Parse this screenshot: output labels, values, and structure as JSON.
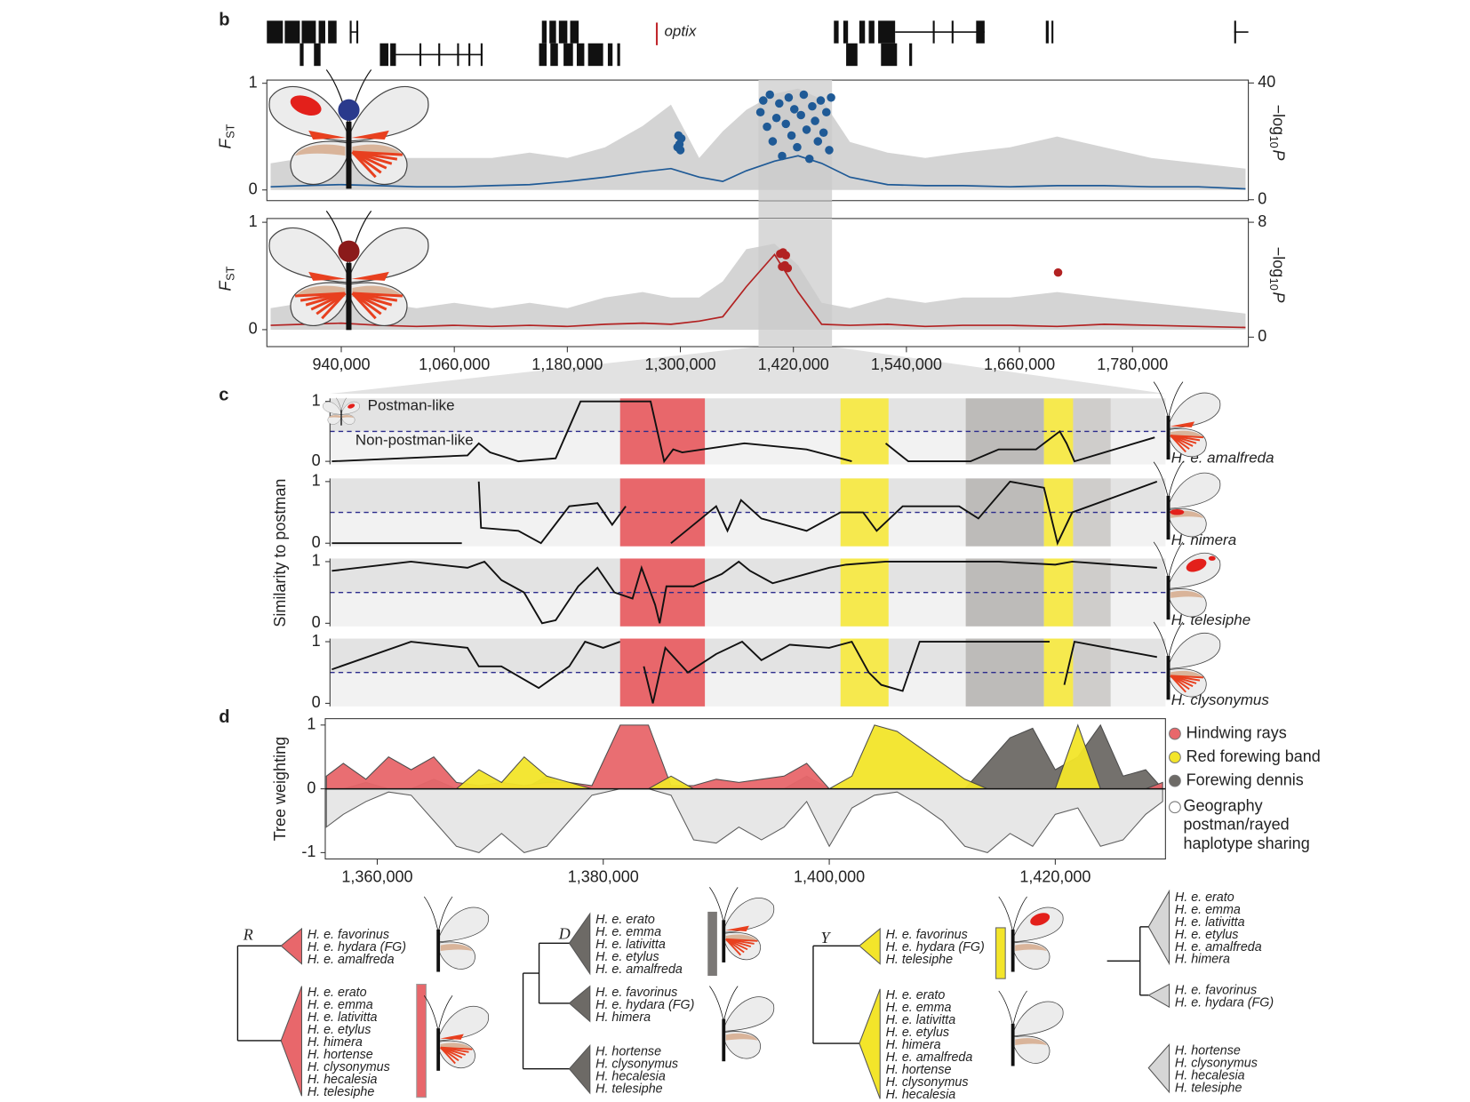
{
  "panel_labels": [
    "b",
    "c",
    "d"
  ],
  "gene_track": {
    "label": "optix"
  },
  "chart_data": [
    {
      "type": "fst",
      "ylabel": "F",
      "ylabel_sub": "ST",
      "y2label": "−log",
      "y2label_sub": "10",
      "y2label_end": "P",
      "xlim": [
        861000,
        1903000
      ],
      "ylim": [
        -0.1,
        1.03
      ],
      "yticks": [
        0,
        1
      ],
      "y2lim": [
        -0.3,
        41
      ],
      "y2ticks": [
        0,
        40
      ],
      "window": [
        1383000,
        1461000
      ],
      "x": [
        865000,
        900000,
        940000,
        980000,
        1020000,
        1060000,
        1100000,
        1140000,
        1180000,
        1220000,
        1260000,
        1290000,
        1320000,
        1345000,
        1370000,
        1400000,
        1425000,
        1450000,
        1480000,
        1520000,
        1560000,
        1600000,
        1650000,
        1700000,
        1750000,
        1800000,
        1850000,
        1900000
      ],
      "series": [
        {
          "style": "area",
          "color": "#c9c9c9",
          "values": [
            0.25,
            0.3,
            0.35,
            0.3,
            0.3,
            0.3,
            0.3,
            0.35,
            0.3,
            0.4,
            0.6,
            0.8,
            0.3,
            0.55,
            0.75,
            0.9,
            0.95,
            0.85,
            0.45,
            0.35,
            0.3,
            0.35,
            0.4,
            0.5,
            0.4,
            0.3,
            0.25,
            0.2
          ]
        },
        {
          "style": "line",
          "color": "#1f5a96",
          "values": [
            0.03,
            0.04,
            0.05,
            0.04,
            0.03,
            0.03,
            0.04,
            0.05,
            0.08,
            0.12,
            0.17,
            0.2,
            0.12,
            0.08,
            0.18,
            0.27,
            0.32,
            0.25,
            0.12,
            0.05,
            0.04,
            0.04,
            0.03,
            0.04,
            0.04,
            0.03,
            0.03,
            0.01
          ]
        },
        {
          "style": "points",
          "axis": "y2",
          "color": "#1f5a96",
          "x": [
            1297000,
            1298000,
            1299000,
            1300000,
            1301000,
            1385000,
            1388000,
            1392000,
            1395000,
            1398000,
            1402000,
            1405000,
            1408000,
            1412000,
            1415000,
            1418000,
            1421000,
            1424000,
            1428000,
            1431000,
            1434000,
            1437000,
            1440000,
            1443000,
            1446000,
            1449000,
            1452000,
            1455000,
            1458000,
            1460000
          ],
          "values": [
            18,
            22,
            19,
            17,
            21,
            30,
            34,
            25,
            36,
            20,
            28,
            33,
            15,
            26,
            35,
            22,
            31,
            18,
            29,
            36,
            24,
            14,
            32,
            27,
            20,
            34,
            23,
            30,
            17,
            35
          ]
        }
      ]
    },
    {
      "type": "fst",
      "ylabel": "F",
      "ylabel_sub": "ST",
      "y2label": "−log",
      "y2label_sub": "10",
      "y2label_end": "P",
      "xlim": [
        861000,
        1903000
      ],
      "ylim": [
        -0.158,
        1.035
      ],
      "yticks": [
        0,
        1
      ],
      "y2lim": [
        -0.66,
        8.26
      ],
      "y2ticks": [
        0,
        8
      ],
      "xticks": [
        {
          "value": 940000,
          "label": "940,000"
        },
        {
          "value": 1060000,
          "label": "1,060,000"
        },
        {
          "value": 1180000,
          "label": "1,180,000"
        },
        {
          "value": 1300000,
          "label": "1,300,000"
        },
        {
          "value": 1420000,
          "label": "1,420,000"
        },
        {
          "value": 1540000,
          "label": "1,540,000"
        },
        {
          "value": 1660000,
          "label": "1,660,000"
        },
        {
          "value": 1780000,
          "label": "1,780,000"
        }
      ],
      "x": [
        865000,
        900000,
        940000,
        980000,
        1020000,
        1060000,
        1100000,
        1140000,
        1180000,
        1220000,
        1260000,
        1290000,
        1320000,
        1345000,
        1370000,
        1400000,
        1425000,
        1450000,
        1480000,
        1520000,
        1560000,
        1600000,
        1650000,
        1700000,
        1750000,
        1800000,
        1850000,
        1900000
      ],
      "series": [
        {
          "style": "area",
          "color": "#c9c9c9",
          "values": [
            0.2,
            0.25,
            0.3,
            0.25,
            0.2,
            0.25,
            0.2,
            0.25,
            0.2,
            0.3,
            0.35,
            0.3,
            0.3,
            0.45,
            0.75,
            0.8,
            0.6,
            0.25,
            0.2,
            0.3,
            0.25,
            0.3,
            0.3,
            0.35,
            0.3,
            0.25,
            0.2,
            0.15
          ]
        },
        {
          "style": "line",
          "color": "#b22222",
          "values": [
            0.04,
            0.05,
            0.06,
            0.04,
            0.03,
            0.04,
            0.03,
            0.04,
            0.03,
            0.05,
            0.06,
            0.05,
            0.08,
            0.12,
            0.4,
            0.7,
            0.35,
            0.05,
            0.04,
            0.05,
            0.03,
            0.04,
            0.04,
            0.03,
            0.05,
            0.04,
            0.03,
            0.02
          ]
        },
        {
          "style": "points",
          "axis": "y2",
          "color": "#b22222",
          "x": [
            1406000,
            1409000,
            1412000,
            1408000,
            1411000,
            1414000,
            1701000
          ],
          "values": [
            5.8,
            5.9,
            5.7,
            4.9,
            5.0,
            4.8,
            4.5
          ]
        }
      ]
    },
    {
      "type": "similarity",
      "ylabel": "Similarity to postman",
      "label": "H. e. amalfreda",
      "annotations": [
        "Postman-like",
        "Non-postman-like"
      ],
      "xlim": [
        1355830,
        1429750
      ],
      "ylim": [
        -0.05,
        1.05
      ],
      "yticks": [
        0,
        1
      ],
      "threshold": 0.5,
      "regions": [
        {
          "start": 1381500,
          "end": 1389000,
          "color": "#e8676b"
        },
        {
          "start": 1401000,
          "end": 1405250,
          "color": "#f6e94e"
        },
        {
          "start": 1412080,
          "end": 1419000,
          "color": "#bdbbb9"
        },
        {
          "start": 1419000,
          "end": 1421580,
          "color": "#f6e94e"
        },
        {
          "start": 1421580,
          "end": 1424900,
          "color": "#cfcdcb"
        }
      ],
      "x": [
        1356000,
        1368000,
        1369000,
        1370000,
        1372500,
        1375800,
        1378000,
        1384200,
        1385400,
        1386200,
        1387000,
        1392500,
        1398000,
        1402000,
        1404500,
        1405000,
        1407000,
        1412500,
        1415000,
        1418300,
        1420400,
        1421000,
        1421700,
        1428800
      ],
      "series": [
        {
          "color": "#111111",
          "values": [
            0,
            0.1,
            0.3,
            0.15,
            0,
            0.05,
            1,
            1,
            0,
            0.2,
            0.15,
            0.3,
            0.2,
            0,
            null,
            0.3,
            0,
            0,
            0.2,
            0.2,
            0.5,
            0.3,
            0,
            0.4
          ]
        }
      ]
    },
    {
      "type": "similarity",
      "label": "H. himera",
      "xlim": [
        1355830,
        1429750
      ],
      "ylim": [
        -0.05,
        1.05
      ],
      "yticks": [
        0,
        1
      ],
      "threshold": 0.5,
      "x": [
        1356000,
        1367500,
        1368200,
        1369000,
        1369200,
        1372500,
        1374500,
        1377000,
        1379500,
        1380800,
        1382000,
        1385500,
        1386000,
        1388000,
        1390000,
        1391000,
        1392200,
        1394000,
        1398000,
        1401000,
        1403000,
        1404200,
        1406500,
        1411500,
        1413200,
        1416000,
        1419000,
        1420200,
        1421500,
        1429000
      ],
      "series": [
        {
          "color": "#111111",
          "values": [
            0,
            0,
            null,
            1,
            0.25,
            0.2,
            0,
            0.6,
            0.65,
            0.3,
            0.6,
            null,
            0,
            0.3,
            0.6,
            0.2,
            0.7,
            0.4,
            0.2,
            0.5,
            0.5,
            0.2,
            0.6,
            0.6,
            0.4,
            1,
            0.9,
            0,
            0.5,
            1
          ]
        }
      ]
    },
    {
      "type": "similarity",
      "label": "H. telesiphe",
      "xlim": [
        1355830,
        1429750
      ],
      "ylim": [
        -0.05,
        1.05
      ],
      "yticks": [
        0,
        1
      ],
      "threshold": 0.5,
      "x": [
        1356000,
        1363000,
        1368000,
        1369500,
        1371000,
        1373000,
        1374600,
        1375800,
        1377800,
        1379500,
        1381000,
        1382600,
        1383400,
        1384600,
        1385000,
        1385600,
        1388000,
        1390500,
        1392000,
        1393000,
        1395000,
        1400000,
        1401500,
        1405000,
        1415000,
        1420000,
        1421500,
        1429000
      ],
      "series": [
        {
          "color": "#111111",
          "values": [
            0.85,
            1,
            0.9,
            1,
            0.7,
            0.5,
            0,
            0.05,
            0.6,
            0.9,
            0.5,
            0.4,
            0.9,
            0.3,
            0,
            0.6,
            0.6,
            0.8,
            1,
            0.85,
            0.65,
            0.9,
            0.95,
            1,
            1,
            0.95,
            1,
            0.9
          ]
        }
      ]
    },
    {
      "type": "similarity",
      "label": "H. clysonymus",
      "xlim": [
        1355830,
        1429750
      ],
      "ylim": [
        -0.05,
        1.05
      ],
      "yticks": [
        0,
        1
      ],
      "threshold": 0.5,
      "x": [
        1356000,
        1363000,
        1368000,
        1369000,
        1371000,
        1374300,
        1377000,
        1378400,
        1380000,
        1381500,
        1382000,
        1383600,
        1384400,
        1385500,
        1387500,
        1390000,
        1392300,
        1394000,
        1396500,
        1400000,
        1402000,
        1403500,
        1404600,
        1406500,
        1408000,
        1413000,
        1419500,
        1420000,
        1420800,
        1421700,
        1429000
      ],
      "series": [
        {
          "color": "#111111",
          "values": [
            0.55,
            1,
            0.9,
            0.6,
            0.6,
            0.25,
            0.6,
            1,
            0.9,
            1,
            null,
            0.6,
            0,
            0.9,
            0.5,
            0.8,
            1,
            0.7,
            0.95,
            0.9,
            1,
            0.5,
            0.3,
            0.2,
            1,
            1,
            1,
            null,
            0.3,
            1,
            0.75
          ]
        }
      ]
    },
    {
      "type": "weighting",
      "ylabel": "Tree weighting",
      "xlim": [
        1355400,
        1429750
      ],
      "ylim": [
        -1.1,
        1.1
      ],
      "yticks": [
        -1,
        0,
        1
      ],
      "xticks": [
        {
          "value": 1360000,
          "label": "1,360,000"
        },
        {
          "value": 1380000,
          "label": "1,380,000"
        },
        {
          "value": 1400000,
          "label": "1,400,000"
        },
        {
          "value": 1420000,
          "label": "1,420,000"
        }
      ],
      "x": [
        1355500,
        1357000,
        1359000,
        1361000,
        1363000,
        1365000,
        1367000,
        1369000,
        1371000,
        1373000,
        1375000,
        1377000,
        1379000,
        1381500,
        1384000,
        1386000,
        1388000,
        1390000,
        1392000,
        1394000,
        1396000,
        1398000,
        1400000,
        1402000,
        1404000,
        1406000,
        1408000,
        1410000,
        1412000,
        1414000,
        1416000,
        1418000,
        1420000,
        1422000,
        1424000,
        1426000,
        1428000,
        1429500
      ],
      "series": [
        {
          "name": "Hindwing rays",
          "color": "#e8676b",
          "values": [
            0.2,
            0.4,
            0.15,
            0.5,
            0.3,
            0.5,
            0.1,
            0.05,
            0.1,
            0.05,
            0.1,
            0.1,
            0.05,
            1,
            1,
            0.05,
            0.05,
            0.15,
            0.1,
            0.15,
            0.2,
            0.4,
            0,
            0,
            0,
            0,
            0,
            0,
            0,
            0,
            0,
            0,
            0,
            0,
            0,
            0,
            0,
            0.1
          ]
        },
        {
          "name": "Red forewing band",
          "color": "#f3e52a",
          "values": [
            0,
            0,
            0,
            0,
            0,
            0,
            0,
            0.3,
            0.1,
            0.5,
            0.2,
            0.1,
            0,
            0,
            0,
            0.2,
            0,
            0,
            0,
            0,
            0,
            0,
            0,
            0.2,
            1,
            0.9,
            0.65,
            0.4,
            0.15,
            0,
            0,
            0,
            0,
            1,
            0,
            0,
            0,
            0
          ]
        },
        {
          "name": "Forewing dennis",
          "color": "#6d6a66",
          "values": [
            0,
            0,
            0.1,
            0,
            0,
            0.15,
            0,
            0,
            0,
            0,
            0.2,
            0,
            0,
            0,
            0,
            0,
            0,
            0,
            0,
            0,
            0,
            0.2,
            0,
            0,
            0,
            0,
            0,
            0,
            0,
            0.4,
            0.8,
            0.95,
            0.3,
            0.5,
            1,
            0.2,
            0.3,
            0
          ]
        },
        {
          "name": "Geography postman/rayed haplotype sharing",
          "color": "#e6e6e6",
          "values": [
            -0.6,
            -0.4,
            -0.2,
            -0.05,
            -0.1,
            -0.5,
            -0.9,
            -1,
            -0.7,
            -1,
            -0.9,
            -0.5,
            -0.1,
            0,
            0,
            -0.1,
            -0.8,
            -0.85,
            -0.6,
            -0.8,
            -0.6,
            -0.2,
            -0.9,
            -0.3,
            -0.1,
            -0.05,
            -0.25,
            -0.5,
            -0.9,
            -1,
            -0.7,
            -0.9,
            -0.4,
            -0.3,
            -0.9,
            -0.8,
            -0.4,
            -0.2
          ]
        }
      ]
    }
  ],
  "trees": [
    {
      "label": "R",
      "color": "#e8676b",
      "clades": [
        [
          "H. e. favorinus",
          "H. e. hydara (FG)",
          "H. e. amalfreda"
        ],
        [
          "H. e. erato",
          "H. e. emma",
          "H. e. lativitta",
          "H. e. etylus",
          "H. himera",
          "H. hortense",
          "H. clysonymus",
          "H. hecalesia",
          "H. telesiphe"
        ]
      ]
    },
    {
      "label": "D",
      "color": "#6d6a66",
      "clades": [
        [
          "H. e. erato",
          "H. e. emma",
          "H. e. lativitta",
          "H. e. etylus",
          "H. e. amalfreda"
        ],
        [
          "H. e. favorinus",
          "H. e. hydara (FG)",
          "H. himera"
        ],
        [
          "H. hortense",
          "H. clysonymus",
          "H. hecalesia",
          "H. telesiphe"
        ]
      ]
    },
    {
      "label": "Y",
      "color": "#f3e52a",
      "clades": [
        [
          "H. e. favorinus",
          "H. e. hydara (FG)",
          "H. telesiphe"
        ],
        [
          "H. e. erato",
          "H. e. emma",
          "H. e. lativitta",
          "H. e. etylus",
          "H. himera",
          "H. e. amalfreda",
          "H. hortense",
          "H. clysonymus",
          "H. hecalesia"
        ]
      ]
    },
    {
      "color": "#d6d6d6",
      "clades": [
        [
          "H. e. erato",
          "H. e. emma",
          "H. e. lativitta",
          "H. e. etylus",
          "H. e. amalfreda",
          "H. himera"
        ],
        [
          "H. e. favorinus",
          "H. e. hydara (FG)"
        ],
        [
          "H. hortense",
          "H. clysonymus",
          "H. hecalesia",
          "H. telesiphe"
        ]
      ]
    }
  ]
}
